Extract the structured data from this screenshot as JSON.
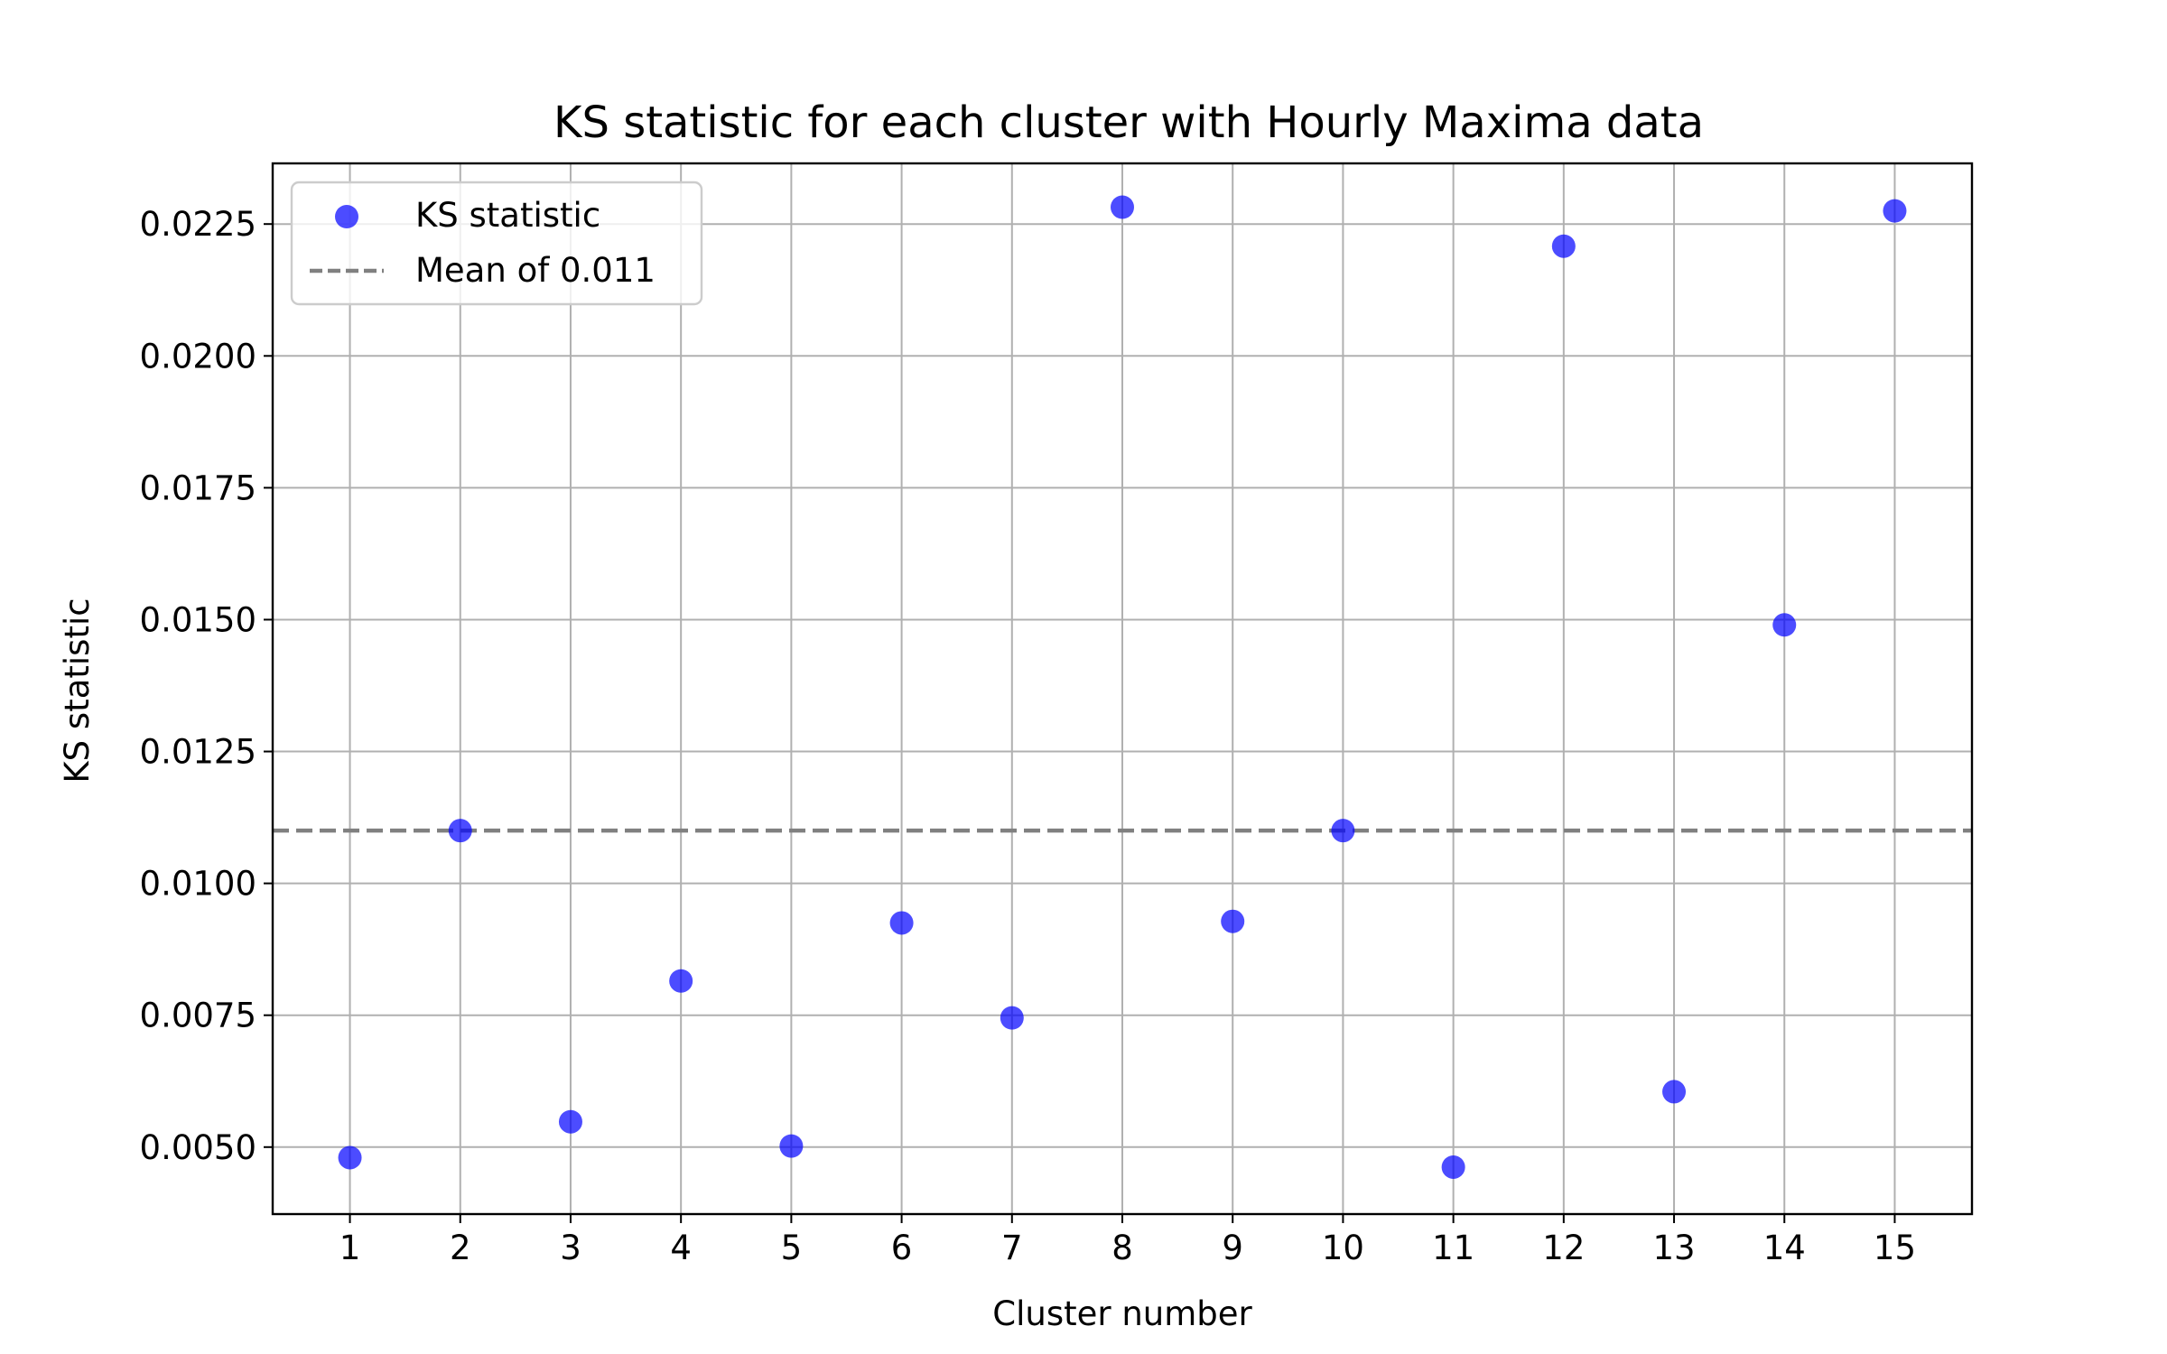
{
  "chart_data": {
    "type": "scatter",
    "title": "KS statistic for each cluster with Hourly Maxima data",
    "xlabel": "Cluster number",
    "ylabel": "KS statistic",
    "x": [
      1,
      2,
      3,
      4,
      5,
      6,
      7,
      8,
      9,
      10,
      11,
      12,
      13,
      14,
      15
    ],
    "x_tick_labels": [
      "1",
      "2",
      "3",
      "4",
      "5",
      "6",
      "7",
      "8",
      "9",
      "10",
      "11",
      "12",
      "13",
      "14",
      "15"
    ],
    "y_tick_values": [
      0.005,
      0.0075,
      0.01,
      0.0125,
      0.015,
      0.0175,
      0.02,
      0.0225
    ],
    "y_tick_labels": [
      "0.0050",
      "0.0075",
      "0.0100",
      "0.0125",
      "0.0150",
      "0.0175",
      "0.0200",
      "0.0225"
    ],
    "xlim": [
      0.3,
      15.7
    ],
    "ylim": [
      0.00373,
      0.02365
    ],
    "grid": true,
    "legend_position": "top-left",
    "series": [
      {
        "name": "KS statistic",
        "kind": "scatter",
        "color": "#0000ff",
        "values": [
          0.0048,
          0.011,
          0.00548,
          0.00815,
          0.00502,
          0.00925,
          0.00745,
          0.02282,
          0.00928,
          0.011,
          0.00462,
          0.02208,
          0.00605,
          0.0149,
          0.02275
        ]
      }
    ],
    "reference_line": {
      "name": "Mean of 0.011",
      "value": 0.011,
      "color": "#808080",
      "style": "dashed"
    }
  }
}
